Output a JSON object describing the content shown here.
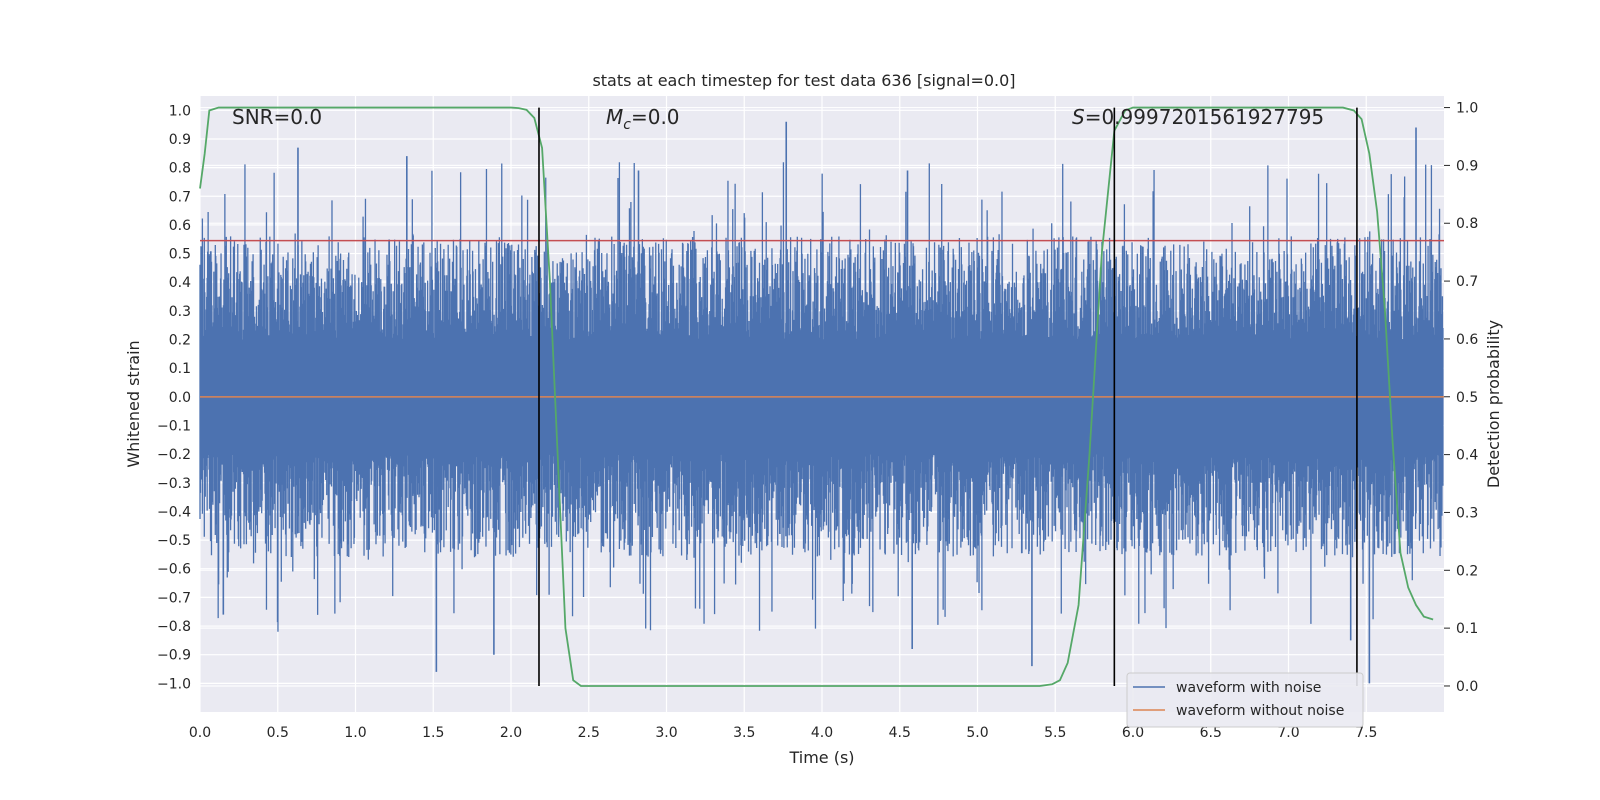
{
  "chart_data": {
    "type": "line",
    "title": "stats at each timestep for test data 636 [signal=0.0]",
    "xlabel": "Time (s)",
    "ylabel": "Whitened strain",
    "y2label": "Detection probability",
    "xlim": [
      0.0,
      8.0
    ],
    "ylim": [
      -1.1,
      1.05
    ],
    "y2lim": [
      -0.045,
      1.02
    ],
    "xticks": [
      "0.0",
      "0.5",
      "1.0",
      "1.5",
      "2.0",
      "2.5",
      "3.0",
      "3.5",
      "4.0",
      "4.5",
      "5.0",
      "5.5",
      "6.0",
      "6.5",
      "7.0",
      "7.5"
    ],
    "yticks": [
      "1.0",
      "0.9",
      "0.8",
      "0.7",
      "0.6",
      "0.5",
      "0.4",
      "0.3",
      "0.2",
      "0.1",
      "0.0",
      "-0.1",
      "-0.2",
      "-0.3",
      "-0.4",
      "-0.5",
      "-0.6",
      "-0.7",
      "-0.8",
      "-0.9",
      "-1.0"
    ],
    "y2ticks": [
      "1.0",
      "0.9",
      "0.8",
      "0.7",
      "0.6",
      "0.5",
      "0.4",
      "0.3",
      "0.2",
      "0.1",
      "0.0"
    ],
    "annotations": {
      "snr": "SNR=0.0",
      "mc_symbol": "M",
      "mc_sub": "c",
      "mc_value": "=0.0",
      "s_symbol": "S",
      "s_value": "=0.9997201561927795"
    },
    "series": [
      {
        "name": "waveform with noise",
        "color": "#4c72b0",
        "kind": "noise",
        "envelope_typical": [
          -0.4,
          0.4
        ],
        "envelope_extreme": [
          -0.96,
          0.96
        ],
        "spikes": [
          {
            "x": 0.15,
            "y": -0.76
          },
          {
            "x": 0.63,
            "y": 0.87
          },
          {
            "x": 1.33,
            "y": 0.84
          },
          {
            "x": 1.52,
            "y": -0.96
          },
          {
            "x": 1.89,
            "y": -0.9
          },
          {
            "x": 2.82,
            "y": 0.79
          },
          {
            "x": 3.77,
            "y": 0.96
          },
          {
            "x": 4.55,
            "y": 0.79
          },
          {
            "x": 4.58,
            "y": -0.88
          },
          {
            "x": 5.35,
            "y": -0.94
          },
          {
            "x": 7.4,
            "y": -0.85
          },
          {
            "x": 7.82,
            "y": 0.94
          },
          {
            "x": 7.52,
            "y": -1.0
          }
        ]
      },
      {
        "name": "waveform without noise",
        "color": "#dd8452",
        "kind": "flat",
        "y": 0.0
      },
      {
        "name": "detection probability",
        "color": "#55a868",
        "axis": "right",
        "x": [
          0.0,
          0.03,
          0.06,
          0.12,
          0.3,
          0.8,
          1.5,
          1.9,
          2.0,
          2.05,
          2.1,
          2.15,
          2.2,
          2.25,
          2.3,
          2.35,
          2.4,
          2.45,
          2.5,
          3.0,
          4.0,
          5.0,
          5.4,
          5.48,
          5.53,
          5.58,
          5.65,
          5.72,
          5.8,
          5.88,
          5.95,
          6.0,
          6.1,
          6.5,
          7.0,
          7.35,
          7.42,
          7.47,
          7.52,
          7.57,
          7.62,
          7.67,
          7.72,
          7.77,
          7.82,
          7.87,
          7.93
        ],
        "values": [
          0.86,
          0.92,
          0.995,
          1.0,
          1.0,
          1.0,
          1.0,
          1.0,
          1.0,
          0.999,
          0.996,
          0.982,
          0.93,
          0.7,
          0.4,
          0.1,
          0.01,
          0.0,
          0.0,
          0.0,
          0.0,
          0.0,
          0.0,
          0.003,
          0.01,
          0.04,
          0.14,
          0.4,
          0.75,
          0.96,
          0.995,
          1.0,
          1.0,
          1.0,
          1.0,
          1.0,
          0.995,
          0.98,
          0.92,
          0.82,
          0.65,
          0.42,
          0.23,
          0.17,
          0.14,
          0.12,
          0.115
        ]
      }
    ],
    "threshold": {
      "y": 0.77,
      "color": "#c44e52"
    },
    "vlines": [
      2.18,
      5.88,
      7.44
    ],
    "vline_color": "#000000",
    "legend_position": "bottom-right",
    "grid": true,
    "style": {
      "background": "#eaeaf2",
      "grid_color": "#ffffff"
    }
  }
}
